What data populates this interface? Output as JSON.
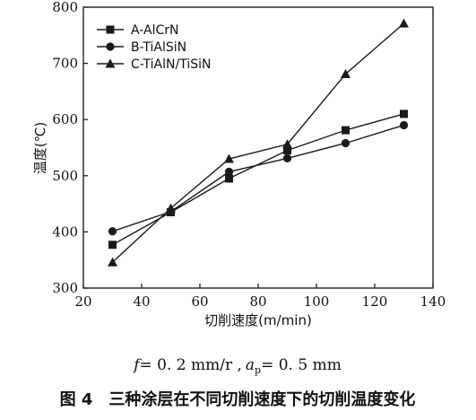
{
  "chart_data": {
    "type": "line",
    "xlabel": "切削速度(m/min)",
    "ylabel": "温度(℃)",
    "xlim": [
      20,
      140
    ],
    "ylim": [
      300,
      800
    ],
    "xticks": [
      20,
      40,
      60,
      80,
      100,
      120,
      140
    ],
    "yticks": [
      300,
      400,
      500,
      600,
      700,
      800
    ],
    "x": [
      30,
      50,
      70,
      90,
      110,
      130
    ],
    "series": [
      {
        "name": "A-AlCrN",
        "marker": "square",
        "values": [
          377,
          435,
          495,
          545,
          581,
          610
        ]
      },
      {
        "name": "B-TiAlSiN",
        "marker": "circle",
        "values": [
          401,
          436,
          507,
          531,
          558,
          590
        ]
      },
      {
        "name": "C-TiAlN/TiSiN",
        "marker": "triangle",
        "values": [
          346,
          442,
          530,
          556,
          681,
          771
        ]
      }
    ],
    "legend_position": "top-left",
    "grid": false,
    "line_color": "#1a1a1a"
  },
  "figure": {
    "params_text": "f = 0.2 mm/r , a_p = 0.5 mm",
    "params": {
      "f": "f",
      "f_value": "= 0. 2 mm/r ,",
      "a": "a",
      "a_sub": "p",
      "a_value": "= 0. 5 mm"
    },
    "caption_label": "图 4",
    "caption_text": "三种涂层在不同切削速度下的切削温度变化"
  }
}
